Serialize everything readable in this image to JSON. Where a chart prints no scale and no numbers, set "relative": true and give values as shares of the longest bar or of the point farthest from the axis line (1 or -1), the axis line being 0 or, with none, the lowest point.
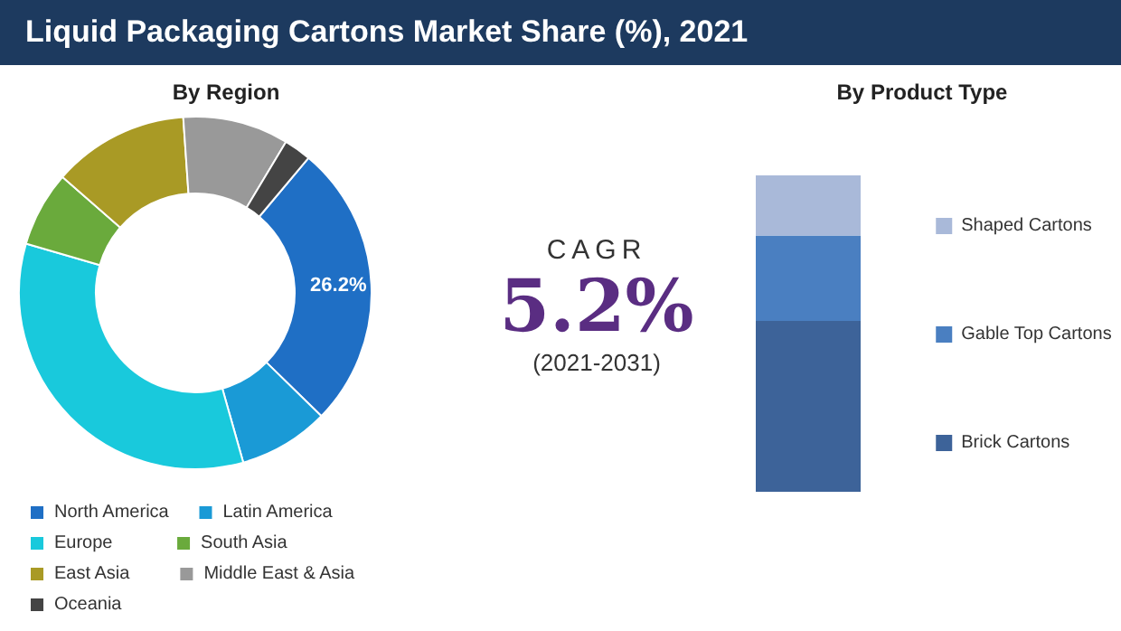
{
  "chart_data": [
    {
      "type": "donut",
      "title": "Liquid Packaging Cartons Market Share (%), 2021",
      "subtitle": "By Region",
      "categories": [
        "North America",
        "Latin America",
        "Europe",
        "South Asia",
        "East Asia",
        "Middle East & Asia",
        "Oceania"
      ],
      "values": [
        26.2,
        8.3,
        33.9,
        6.9,
        12.5,
        9.7,
        2.5
      ],
      "value_labels": [
        "26.2%",
        null,
        null,
        null,
        null,
        null,
        null
      ],
      "colors": [
        "#1f6fc5",
        "#1a9ad6",
        "#19c9dc",
        "#6aaa3c",
        "#a99a25",
        "#999999",
        "#444444"
      ],
      "legend": "bottom"
    },
    {
      "type": "other",
      "annotations": [
        "CAGR",
        "5.2%",
        "(2021-2031)"
      ]
    },
    {
      "type": "bar",
      "subtitle": "By Product Type",
      "stacked": true,
      "relative": true,
      "categories": [
        null
      ],
      "legend": "right",
      "series": [
        {
          "name": "Brick Cartons",
          "color": "#3d6399",
          "values": [
            0.54
          ]
        },
        {
          "name": "Gable Top Cartons",
          "color": "#4a7fc1",
          "values": [
            0.27
          ]
        },
        {
          "name": "Shaped Cartons",
          "color": "#a9b9d9",
          "values": [
            0.19
          ]
        }
      ]
    }
  ]
}
